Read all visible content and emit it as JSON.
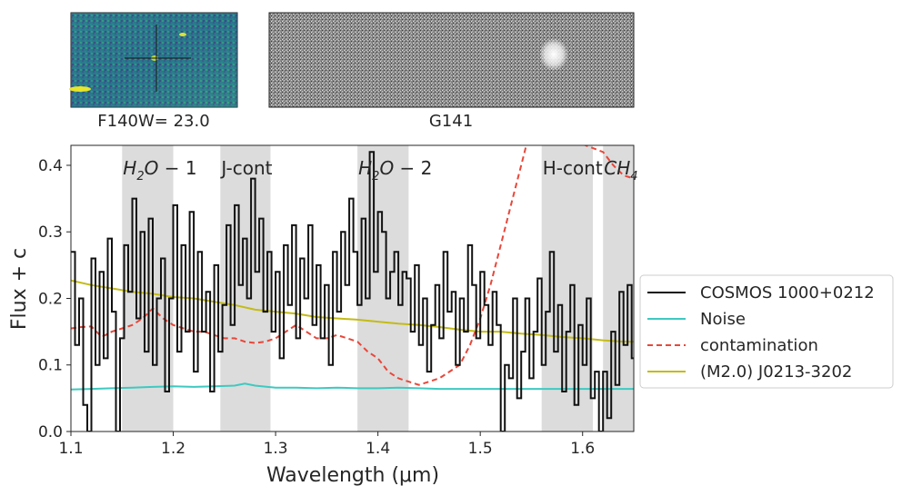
{
  "thumbnails": {
    "direct_caption": "F140W= 23.0",
    "grism_caption": "G141"
  },
  "colors": {
    "spectrum": "#111111",
    "noise": "#3ec9c0",
    "contamination": "#e8473a",
    "template": "#c3bb18",
    "band_fill": "#dcdcdc"
  },
  "chart_data": {
    "type": "line",
    "xlabel": "Wavelength (μm)",
    "ylabel": "Flux + c",
    "xlim": [
      1.1,
      1.65
    ],
    "ylim": [
      0.0,
      0.43
    ],
    "xticks": [
      "1.1",
      "1.2",
      "1.3",
      "1.4",
      "1.5",
      "1.6"
    ],
    "yticks": [
      "0.0",
      "0.1",
      "0.2",
      "0.3",
      "0.4"
    ],
    "bands": [
      {
        "label": "H2O-1",
        "lo": 1.15,
        "hi": 1.2
      },
      {
        "label": "J-cont",
        "lo": 1.246,
        "hi": 1.295
      },
      {
        "label": "H2O-2",
        "lo": 1.38,
        "hi": 1.43
      },
      {
        "label": "H-cont",
        "lo": 1.56,
        "hi": 1.61
      },
      {
        "label": "CH4",
        "lo": 1.62,
        "hi": 1.65
      }
    ],
    "legend_position": "center-right outside",
    "series": [
      {
        "name": "COSMOS 1000+0212",
        "style": "steps",
        "x": [
          1.1,
          1.104,
          1.108,
          1.112,
          1.116,
          1.12,
          1.124,
          1.128,
          1.132,
          1.136,
          1.14,
          1.144,
          1.148,
          1.152,
          1.156,
          1.16,
          1.164,
          1.168,
          1.172,
          1.176,
          1.18,
          1.184,
          1.188,
          1.192,
          1.196,
          1.2,
          1.204,
          1.208,
          1.212,
          1.216,
          1.22,
          1.224,
          1.228,
          1.232,
          1.236,
          1.24,
          1.244,
          1.248,
          1.252,
          1.256,
          1.26,
          1.264,
          1.268,
          1.272,
          1.276,
          1.28,
          1.284,
          1.288,
          1.292,
          1.296,
          1.3,
          1.304,
          1.308,
          1.312,
          1.316,
          1.32,
          1.324,
          1.328,
          1.332,
          1.336,
          1.34,
          1.344,
          1.348,
          1.352,
          1.356,
          1.36,
          1.364,
          1.368,
          1.372,
          1.376,
          1.38,
          1.384,
          1.388,
          1.392,
          1.396,
          1.4,
          1.404,
          1.408,
          1.412,
          1.416,
          1.42,
          1.424,
          1.428,
          1.432,
          1.436,
          1.44,
          1.444,
          1.448,
          1.452,
          1.456,
          1.46,
          1.464,
          1.468,
          1.472,
          1.476,
          1.48,
          1.484,
          1.488,
          1.492,
          1.496,
          1.5,
          1.504,
          1.508,
          1.512,
          1.516,
          1.52,
          1.524,
          1.528,
          1.532,
          1.536,
          1.54,
          1.544,
          1.548,
          1.552,
          1.556,
          1.56,
          1.564,
          1.568,
          1.572,
          1.576,
          1.58,
          1.584,
          1.588,
          1.592,
          1.596,
          1.6,
          1.604,
          1.608,
          1.612,
          1.616,
          1.62,
          1.624,
          1.628,
          1.632,
          1.636,
          1.64,
          1.644,
          1.648
        ],
        "y": [
          0.27,
          0.13,
          0.2,
          0.04,
          0.0,
          0.26,
          0.1,
          0.24,
          0.11,
          0.29,
          0.18,
          0.0,
          0.14,
          0.28,
          0.21,
          0.35,
          0.17,
          0.3,
          0.12,
          0.32,
          0.1,
          0.2,
          0.26,
          0.06,
          0.2,
          0.34,
          0.12,
          0.28,
          0.15,
          0.33,
          0.09,
          0.27,
          0.15,
          0.21,
          0.06,
          0.25,
          0.12,
          0.19,
          0.31,
          0.16,
          0.34,
          0.22,
          0.29,
          0.2,
          0.38,
          0.24,
          0.32,
          0.18,
          0.27,
          0.15,
          0.24,
          0.11,
          0.28,
          0.19,
          0.31,
          0.14,
          0.26,
          0.2,
          0.31,
          0.16,
          0.25,
          0.14,
          0.22,
          0.1,
          0.27,
          0.18,
          0.3,
          0.22,
          0.35,
          0.27,
          0.19,
          0.32,
          0.2,
          0.42,
          0.24,
          0.33,
          0.3,
          0.2,
          0.24,
          0.27,
          0.19,
          0.24,
          0.23,
          0.15,
          0.25,
          0.13,
          0.2,
          0.09,
          0.16,
          0.22,
          0.14,
          0.27,
          0.18,
          0.21,
          0.1,
          0.2,
          0.15,
          0.28,
          0.22,
          0.14,
          0.24,
          0.19,
          0.13,
          0.21,
          0.16,
          0.0,
          0.1,
          0.08,
          0.2,
          0.05,
          0.12,
          0.2,
          0.08,
          0.15,
          0.23,
          0.1,
          0.18,
          0.27,
          0.12,
          0.19,
          0.06,
          0.15,
          0.22,
          0.04,
          0.16,
          0.1,
          0.2,
          0.05,
          0.09,
          0.0,
          0.09,
          0.02,
          0.15,
          0.07,
          0.21,
          0.13,
          0.22,
          0.11
        ]
      },
      {
        "name": "Noise",
        "x": [
          1.1,
          1.12,
          1.14,
          1.16,
          1.18,
          1.2,
          1.22,
          1.24,
          1.26,
          1.27,
          1.28,
          1.3,
          1.32,
          1.34,
          1.36,
          1.38,
          1.4,
          1.42,
          1.44,
          1.46,
          1.48,
          1.5,
          1.52,
          1.54,
          1.56,
          1.58,
          1.6,
          1.62,
          1.64,
          1.65
        ],
        "y": [
          0.063,
          0.064,
          0.065,
          0.066,
          0.067,
          0.068,
          0.067,
          0.068,
          0.069,
          0.072,
          0.069,
          0.066,
          0.066,
          0.065,
          0.066,
          0.065,
          0.065,
          0.066,
          0.065,
          0.064,
          0.064,
          0.064,
          0.064,
          0.064,
          0.064,
          0.064,
          0.064,
          0.064,
          0.064,
          0.064
        ]
      },
      {
        "name": "contamination",
        "x": [
          1.1,
          1.11,
          1.12,
          1.13,
          1.14,
          1.15,
          1.16,
          1.17,
          1.18,
          1.19,
          1.2,
          1.21,
          1.22,
          1.23,
          1.24,
          1.25,
          1.26,
          1.27,
          1.28,
          1.29,
          1.3,
          1.31,
          1.32,
          1.33,
          1.34,
          1.35,
          1.36,
          1.37,
          1.38,
          1.39,
          1.4,
          1.41,
          1.42,
          1.43,
          1.44,
          1.45,
          1.46,
          1.47,
          1.48,
          1.49,
          1.5,
          1.51,
          1.52,
          1.53,
          1.54,
          1.545,
          1.55,
          1.552,
          1.62,
          1.63,
          1.64,
          1.65
        ],
        "y": [
          0.155,
          0.157,
          0.158,
          0.142,
          0.15,
          0.155,
          0.16,
          0.17,
          0.185,
          0.17,
          0.16,
          0.155,
          0.15,
          0.15,
          0.145,
          0.14,
          0.14,
          0.135,
          0.133,
          0.135,
          0.14,
          0.15,
          0.16,
          0.15,
          0.14,
          0.14,
          0.145,
          0.14,
          0.135,
          0.12,
          0.11,
          0.09,
          0.08,
          0.075,
          0.07,
          0.075,
          0.08,
          0.09,
          0.1,
          0.13,
          0.17,
          0.22,
          0.28,
          0.34,
          0.4,
          0.43,
          0.45,
          0.46,
          0.42,
          0.4,
          0.385,
          0.38
        ]
      },
      {
        "name": "(M2.0) J0213-3202",
        "x": [
          1.1,
          1.12,
          1.14,
          1.16,
          1.18,
          1.2,
          1.22,
          1.24,
          1.26,
          1.28,
          1.3,
          1.32,
          1.34,
          1.36,
          1.38,
          1.4,
          1.42,
          1.44,
          1.46,
          1.48,
          1.5,
          1.52,
          1.54,
          1.56,
          1.58,
          1.6,
          1.62,
          1.64,
          1.65
        ],
        "y": [
          0.227,
          0.22,
          0.215,
          0.21,
          0.207,
          0.202,
          0.2,
          0.195,
          0.19,
          0.183,
          0.18,
          0.177,
          0.172,
          0.17,
          0.168,
          0.165,
          0.162,
          0.16,
          0.157,
          0.153,
          0.15,
          0.15,
          0.147,
          0.145,
          0.142,
          0.14,
          0.137,
          0.135,
          0.135
        ]
      }
    ]
  }
}
